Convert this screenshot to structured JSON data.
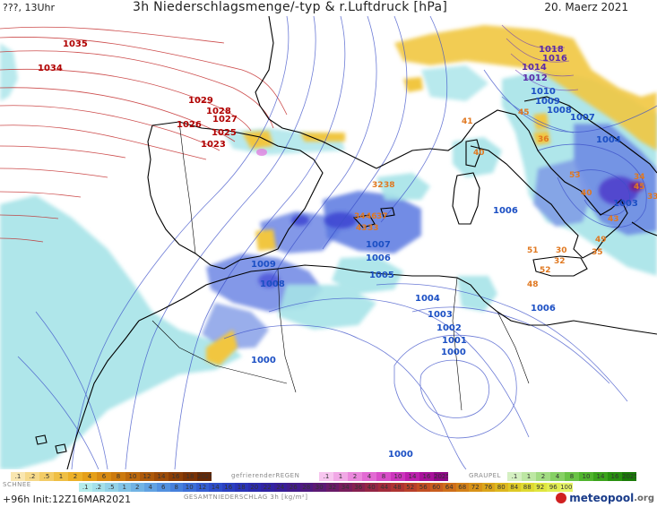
{
  "header": {
    "left": "???, 13Uhr",
    "title": "3h Niederschlagsmenge/-typ & r.Luftdruck [hPa]",
    "date": "20. Maerz 2021"
  },
  "isobars": {
    "red": [
      "1035",
      "1034",
      "1029",
      "1028",
      "1027",
      "1026",
      "1025",
      "1023"
    ],
    "blue": [
      "1010",
      "1009",
      "1009",
      "1008",
      "1008",
      "1007",
      "1007",
      "1006",
      "1006",
      "1006",
      "1005",
      "1004",
      "1004",
      "1003",
      "1003",
      "1002",
      "1001",
      "1000",
      "1000"
    ],
    "purple": [
      "1018",
      "1016",
      "1014",
      "1012"
    ]
  },
  "precip_labels": [
    "41",
    "45",
    "40",
    "36",
    "32",
    "38",
    "34",
    "46",
    "37",
    "43",
    "33",
    "48",
    "52",
    "51",
    "53",
    "40",
    "43",
    "49",
    "30",
    "34",
    "45",
    "32",
    "35",
    "33"
  ],
  "legend": {
    "snow": {
      "label": "SCHNEE",
      "values": [
        ".1",
        ".2",
        ".5",
        "1",
        "2",
        "4",
        "6",
        "8",
        "10",
        "12",
        "14",
        "16",
        "18",
        "2025+"
      ],
      "colors": [
        "#f9e6b0",
        "#f6d98a",
        "#f3cc66",
        "#efbf44",
        "#ecb027",
        "#e59f18",
        "#d98b12",
        "#cc7a0e",
        "#bd690c",
        "#ad590a",
        "#9d4b08",
        "#8c3e06",
        "#7a3205",
        "#662704"
      ]
    },
    "freezing_rain": {
      "label": "gefrierenderREGEN",
      "values": [
        ".1",
        "1",
        "2",
        "4",
        "8",
        "10",
        "14",
        "16",
        "2025+"
      ],
      "colors": [
        "#f7c6ef",
        "#f1a8e6",
        "#ea88dc",
        "#e26ad3",
        "#d94ec9",
        "#cc35bd",
        "#bd1fae",
        "#a8109b",
        "#8f0886"
      ]
    },
    "graupel": {
      "label": "GRAUPEL",
      "values": [
        ".1",
        "1",
        "2",
        "4",
        "8",
        "10",
        "14",
        "16",
        "2025+"
      ],
      "colors": [
        "#d5f0c2",
        "#bde7a3",
        "#a2dc83",
        "#86d064",
        "#6ac346",
        "#50b42d",
        "#3aa31b",
        "#28900f",
        "#1a7b07"
      ]
    },
    "total": {
      "label": "GESAMTNIEDERSCHLAG 3h [kg/m²]",
      "values": [
        ".1",
        ".2",
        ".5",
        "1",
        "2",
        "4",
        "6",
        "8",
        "10",
        "12",
        "14",
        "16",
        "18",
        "20",
        "22",
        "24",
        "26",
        "28",
        "30",
        "32",
        "34",
        "36",
        "40",
        "44",
        "48",
        "52",
        "56",
        "60",
        "64",
        "68",
        "72",
        "76",
        "80",
        "84",
        "88",
        "92",
        "96",
        "100"
      ],
      "colors": [
        "#b4ecec",
        "#a4e0ea",
        "#93d2e8",
        "#82c3e6",
        "#71b3e4",
        "#61a2e2",
        "#5291e0",
        "#4680dc",
        "#3c6fd8",
        "#345ed2",
        "#2e4ecb",
        "#2a40c2",
        "#2a34b8",
        "#2c2bae",
        "#3124a3",
        "#391f98",
        "#431c8c",
        "#4f1a80",
        "#5c1a74",
        "#6a1b68",
        "#781d5c",
        "#862050",
        "#942545",
        "#a22b3b",
        "#ae3432",
        "#b9402a",
        "#c24e23",
        "#c95e1e",
        "#cf6f1a",
        "#d48118",
        "#d89318",
        "#dba51a",
        "#ddb71f",
        "#dec926",
        "#dfda31",
        "#e0e63f",
        "#e2ee52",
        "#e6f468"
      ]
    }
  },
  "footer": {
    "run": "+96h  Init:12Z16MAR2021",
    "brand": "meteopool",
    "brand_tld": ".org"
  },
  "colors": {
    "isobar_blue": "#3b4fc8",
    "isobar_red": "#c02020",
    "coast": "#000000",
    "rain_light": "#9fe0e6",
    "rain_blue": "#5b78e0",
    "snow": "#f1c640"
  }
}
